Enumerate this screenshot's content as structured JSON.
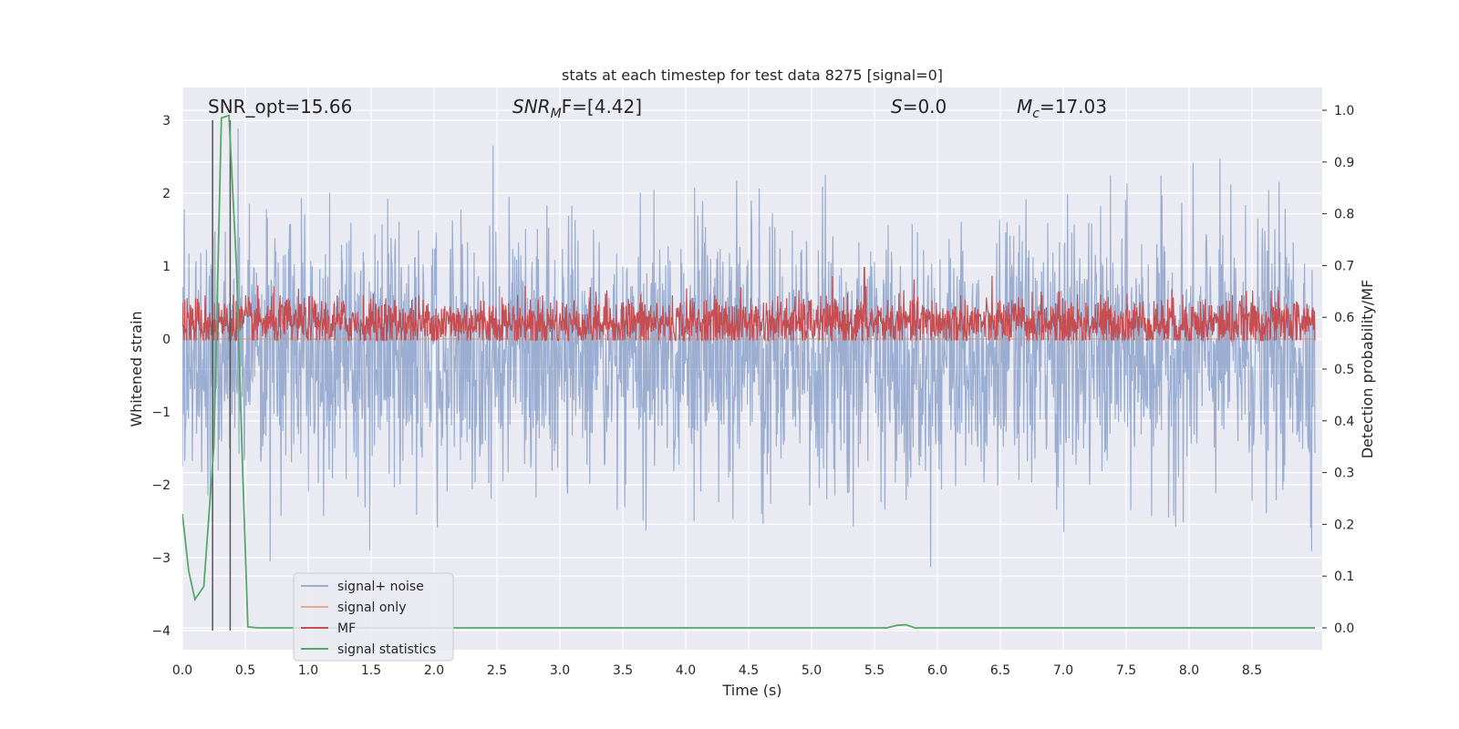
{
  "chart_data": {
    "type": "line",
    "title": "stats at each timestep for test data 8275 [signal=0]",
    "xlabel": "Time (s)",
    "ylabel": "Whitened strain",
    "ylabel_right": "Detection probability/MF",
    "xlim": [
      0,
      9.0
    ],
    "ylim": [
      -4.35,
      3.4
    ],
    "ylim_right": [
      -0.048,
      1.035
    ],
    "x_ticks": [
      0.0,
      0.5,
      1.0,
      1.5,
      2.0,
      2.5,
      3.0,
      3.5,
      4.0,
      4.5,
      5.0,
      5.5,
      6.0,
      6.5,
      7.0,
      7.5,
      8.0,
      8.5
    ],
    "x_tick_labels": [
      "0.0",
      "0.5",
      "1.0",
      "1.5",
      "2.0",
      "2.5",
      "3.0",
      "3.5",
      "4.0",
      "4.5",
      "5.0",
      "5.5",
      "6.0",
      "6.5",
      "7.0",
      "7.5",
      "8.0",
      "8.5"
    ],
    "y_ticks": [
      -4,
      -3,
      -2,
      -1,
      0,
      1,
      2,
      3
    ],
    "y_tick_labels": [
      "−4",
      "−3",
      "−2",
      "−1",
      "0",
      "1",
      "2",
      "3"
    ],
    "y2_ticks": [
      0.0,
      0.1,
      0.2,
      0.3,
      0.4,
      0.5,
      0.6,
      0.7,
      0.8,
      0.9,
      1.0
    ],
    "y2_tick_labels": [
      "0.0",
      "0.1",
      "0.2",
      "0.3",
      "0.4",
      "0.5",
      "0.6",
      "0.7",
      "0.8",
      "0.9",
      "1.0"
    ],
    "grid": true,
    "legend_position": "lower-left",
    "annotations": {
      "snr_opt": "SNR_opt=15.66",
      "snr_mf_base": "SNR",
      "snr_mf_sub": "M",
      "snr_mf_rest": "F=[4.42]",
      "s_stat_symbol": "S",
      "s_stat_value": "=0.0",
      "mc_symbol": "M",
      "mc_sub": "c",
      "mc_value": "=17.03"
    },
    "vertical_lines_x": [
      0.24,
      0.38
    ],
    "series": [
      {
        "name": "signal+ noise",
        "color": "#4c72b0",
        "opacity": 0.5,
        "axis": "left",
        "description": "dense noise band",
        "mean": -0.2,
        "std": 0.9,
        "range": [
          -4.0,
          2.95
        ]
      },
      {
        "name": "signal only",
        "color": "#dd8452",
        "opacity": 0.6,
        "axis": "left",
        "values_flat": 0.0
      },
      {
        "name": "MF",
        "color": "#c44e52",
        "axis": "left",
        "mean": 0.22,
        "std": 0.18,
        "range": [
          -0.02,
          0.98
        ]
      },
      {
        "name": "signal statistics",
        "color": "#55a868",
        "axis": "right",
        "x": [
          0.0,
          0.05,
          0.1,
          0.17,
          0.25,
          0.31,
          0.37,
          0.43,
          0.48,
          0.52,
          0.6,
          5.6,
          5.68,
          5.75,
          5.82,
          9.0
        ],
        "values": [
          0.22,
          0.11,
          0.055,
          0.08,
          0.35,
          0.985,
          0.99,
          0.7,
          0.3,
          0.002,
          0.0,
          0.0,
          0.005,
          0.006,
          0.0,
          0.0
        ]
      }
    ]
  }
}
